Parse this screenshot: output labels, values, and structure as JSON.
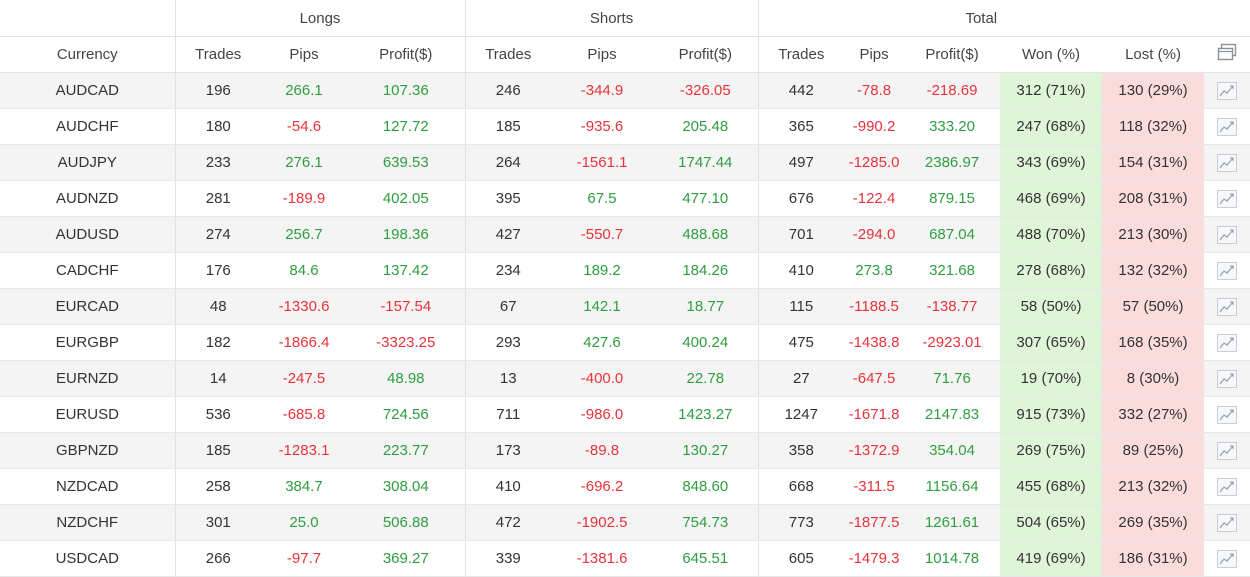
{
  "groups": {
    "longs": "Longs",
    "shorts": "Shorts",
    "total": "Total"
  },
  "columns": {
    "currency": "Currency",
    "trades": "Trades",
    "pips": "Pips",
    "profit": "Profit($)",
    "won": "Won (%)",
    "lost": "Lost (%)"
  },
  "icons": {
    "columns": "columns-toggle-icon",
    "row_chart": "line-chart-icon"
  },
  "colors": {
    "positive": "#2f9e3f",
    "negative": "#e8333a",
    "won_bg": "#dff5d8",
    "lost_bg": "#fbdcdc"
  },
  "rows": [
    {
      "currency": "AUDCAD",
      "l_trades": "196",
      "l_pips": "266.1",
      "l_profit": "107.36",
      "s_trades": "246",
      "s_pips": "-344.9",
      "s_profit": "-326.05",
      "t_trades": "442",
      "t_pips": "-78.8",
      "t_profit": "-218.69",
      "won": "312 (71%)",
      "lost": "130 (29%)"
    },
    {
      "currency": "AUDCHF",
      "l_trades": "180",
      "l_pips": "-54.6",
      "l_profit": "127.72",
      "s_trades": "185",
      "s_pips": "-935.6",
      "s_profit": "205.48",
      "t_trades": "365",
      "t_pips": "-990.2",
      "t_profit": "333.20",
      "won": "247 (68%)",
      "lost": "118 (32%)"
    },
    {
      "currency": "AUDJPY",
      "l_trades": "233",
      "l_pips": "276.1",
      "l_profit": "639.53",
      "s_trades": "264",
      "s_pips": "-1561.1",
      "s_profit": "1747.44",
      "t_trades": "497",
      "t_pips": "-1285.0",
      "t_profit": "2386.97",
      "won": "343 (69%)",
      "lost": "154 (31%)"
    },
    {
      "currency": "AUDNZD",
      "l_trades": "281",
      "l_pips": "-189.9",
      "l_profit": "402.05",
      "s_trades": "395",
      "s_pips": "67.5",
      "s_profit": "477.10",
      "t_trades": "676",
      "t_pips": "-122.4",
      "t_profit": "879.15",
      "won": "468 (69%)",
      "lost": "208 (31%)"
    },
    {
      "currency": "AUDUSD",
      "l_trades": "274",
      "l_pips": "256.7",
      "l_profit": "198.36",
      "s_trades": "427",
      "s_pips": "-550.7",
      "s_profit": "488.68",
      "t_trades": "701",
      "t_pips": "-294.0",
      "t_profit": "687.04",
      "won": "488 (70%)",
      "lost": "213 (30%)"
    },
    {
      "currency": "CADCHF",
      "l_trades": "176",
      "l_pips": "84.6",
      "l_profit": "137.42",
      "s_trades": "234",
      "s_pips": "189.2",
      "s_profit": "184.26",
      "t_trades": "410",
      "t_pips": "273.8",
      "t_profit": "321.68",
      "won": "278 (68%)",
      "lost": "132 (32%)"
    },
    {
      "currency": "EURCAD",
      "l_trades": "48",
      "l_pips": "-1330.6",
      "l_profit": "-157.54",
      "s_trades": "67",
      "s_pips": "142.1",
      "s_profit": "18.77",
      "t_trades": "115",
      "t_pips": "-1188.5",
      "t_profit": "-138.77",
      "won": "58 (50%)",
      "lost": "57 (50%)"
    },
    {
      "currency": "EURGBP",
      "l_trades": "182",
      "l_pips": "-1866.4",
      "l_profit": "-3323.25",
      "s_trades": "293",
      "s_pips": "427.6",
      "s_profit": "400.24",
      "t_trades": "475",
      "t_pips": "-1438.8",
      "t_profit": "-2923.01",
      "won": "307 (65%)",
      "lost": "168 (35%)"
    },
    {
      "currency": "EURNZD",
      "l_trades": "14",
      "l_pips": "-247.5",
      "l_profit": "48.98",
      "s_trades": "13",
      "s_pips": "-400.0",
      "s_profit": "22.78",
      "t_trades": "27",
      "t_pips": "-647.5",
      "t_profit": "71.76",
      "won": "19 (70%)",
      "lost": "8 (30%)"
    },
    {
      "currency": "EURUSD",
      "l_trades": "536",
      "l_pips": "-685.8",
      "l_profit": "724.56",
      "s_trades": "711",
      "s_pips": "-986.0",
      "s_profit": "1423.27",
      "t_trades": "1247",
      "t_pips": "-1671.8",
      "t_profit": "2147.83",
      "won": "915 (73%)",
      "lost": "332 (27%)"
    },
    {
      "currency": "GBPNZD",
      "l_trades": "185",
      "l_pips": "-1283.1",
      "l_profit": "223.77",
      "s_trades": "173",
      "s_pips": "-89.8",
      "s_profit": "130.27",
      "t_trades": "358",
      "t_pips": "-1372.9",
      "t_profit": "354.04",
      "won": "269 (75%)",
      "lost": "89 (25%)"
    },
    {
      "currency": "NZDCAD",
      "l_trades": "258",
      "l_pips": "384.7",
      "l_profit": "308.04",
      "s_trades": "410",
      "s_pips": "-696.2",
      "s_profit": "848.60",
      "t_trades": "668",
      "t_pips": "-311.5",
      "t_profit": "1156.64",
      "won": "455 (68%)",
      "lost": "213 (32%)"
    },
    {
      "currency": "NZDCHF",
      "l_trades": "301",
      "l_pips": "25.0",
      "l_profit": "506.88",
      "s_trades": "472",
      "s_pips": "-1902.5",
      "s_profit": "754.73",
      "t_trades": "773",
      "t_pips": "-1877.5",
      "t_profit": "1261.61",
      "won": "504 (65%)",
      "lost": "269 (35%)"
    },
    {
      "currency": "USDCAD",
      "l_trades": "266",
      "l_pips": "-97.7",
      "l_profit": "369.27",
      "s_trades": "339",
      "s_pips": "-1381.6",
      "s_profit": "645.51",
      "t_trades": "605",
      "t_pips": "-1479.3",
      "t_profit": "1014.78",
      "won": "419 (69%)",
      "lost": "186 (31%)"
    }
  ]
}
